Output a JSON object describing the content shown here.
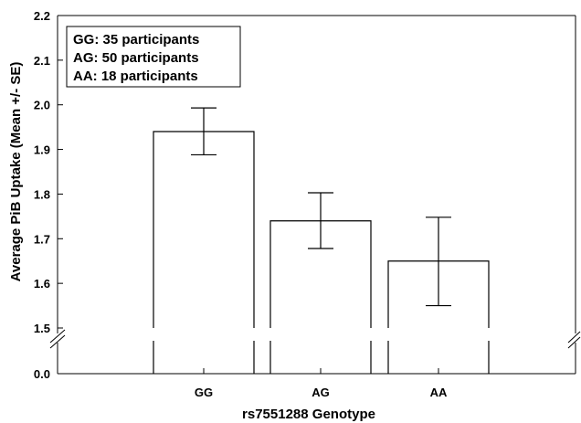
{
  "chart_data": {
    "type": "bar",
    "xlabel": "rs7551288 Genotype",
    "ylabel": "Average PiB Uptake (Mean +/- SE)",
    "categories": [
      "GG",
      "AG",
      "AA"
    ],
    "values": [
      1.94,
      1.74,
      1.65
    ],
    "error_low": [
      1.888,
      1.678,
      1.55
    ],
    "error_high": [
      1.993,
      1.803,
      1.748
    ],
    "ylim": [
      1.5,
      2.2
    ],
    "y_ticks": [
      "2.2",
      "2.1",
      "2.0",
      "1.9",
      "1.8",
      "1.7",
      "1.6",
      "1.5"
    ],
    "broken_axis_tick": "0.0",
    "legend": {
      "placement": "top-left",
      "entries": [
        "GG: 35 participants",
        "AG: 50 participants",
        "AA: 18 participants"
      ]
    },
    "grid": false
  }
}
